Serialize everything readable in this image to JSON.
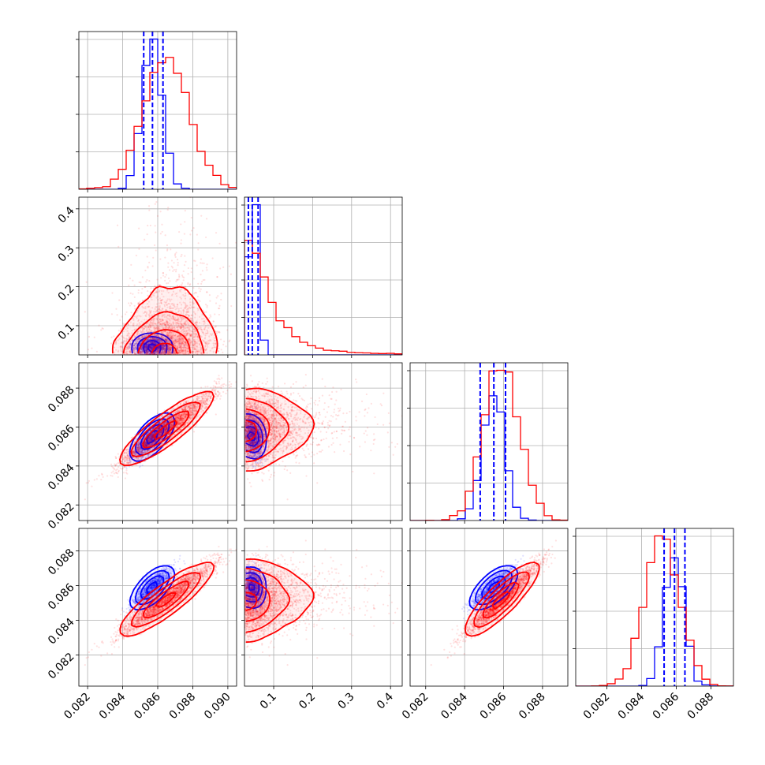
{
  "chart_data": {
    "type": "corner",
    "title": "",
    "colors": {
      "blue": "#0000ff",
      "red": "#ff0000",
      "grid": "#b0b0b0"
    },
    "params": [
      {
        "range": [
          0.0815,
          0.0905
        ],
        "ticks": [
          0.082,
          0.084,
          0.086,
          0.088,
          0.09
        ],
        "tick_labels": [
          "0.082",
          "0.084",
          "0.086",
          "0.088",
          "0.090"
        ]
      },
      {
        "range": [
          0.025,
          0.43
        ],
        "ticks": [
          0.1,
          0.2,
          0.3,
          0.4
        ],
        "tick_labels": [
          "0.1",
          "0.2",
          "0.3",
          "0.4"
        ]
      },
      {
        "range": [
          0.0812,
          0.0893
        ],
        "ticks": [
          0.082,
          0.084,
          0.086,
          0.088
        ],
        "tick_labels": [
          "0.082",
          "0.084",
          "0.086",
          "0.088"
        ]
      },
      {
        "range": [
          0.0802,
          0.0893
        ],
        "ticks": [
          0.082,
          0.084,
          0.086,
          0.088
        ],
        "tick_labels": [
          "0.082",
          "0.084",
          "0.086",
          "0.088"
        ]
      }
    ],
    "series": [
      {
        "color": "blue",
        "means": [
          0.0857,
          0.0485,
          0.0855,
          0.0859
        ],
        "sds": [
          0.00055,
          0.011,
          0.00055,
          0.00055
        ],
        "quantiles": [
          [
            0.0852,
            0.0857,
            0.0863
          ],
          [
            0.035,
            0.045,
            0.06
          ],
          [
            0.0848,
            0.0855,
            0.0861
          ],
          [
            0.0853,
            0.0859,
            0.0865
          ]
        ],
        "corr": [
          [
            1,
            0.0,
            0.85,
            0.85
          ],
          [
            0.0,
            1,
            -0.3,
            -0.1
          ],
          [
            0.85,
            -0.3,
            1,
            0.85
          ],
          [
            0.85,
            -0.1,
            0.85,
            1
          ]
        ],
        "lognormal": [
          false,
          false,
          false,
          false
        ]
      },
      {
        "color": "red",
        "means": [
          0.0865,
          0.085,
          0.0859,
          0.0852
        ],
        "sds": [
          0.0013,
          0.075,
          0.0009,
          0.001
        ],
        "quantiles": [],
        "corr": [
          [
            1,
            0.15,
            0.94,
            0.94
          ],
          [
            0.15,
            1,
            0.1,
            0.1
          ],
          [
            0.94,
            0.1,
            1,
            0.94
          ],
          [
            0.94,
            0.1,
            0.94,
            1
          ]
        ],
        "lognormal": [
          false,
          true,
          false,
          false
        ]
      }
    ],
    "hist_bins": 20,
    "density_levels": [
      0.118,
      0.393,
      0.675,
      0.864
    ],
    "grid": true,
    "legend": "none"
  }
}
